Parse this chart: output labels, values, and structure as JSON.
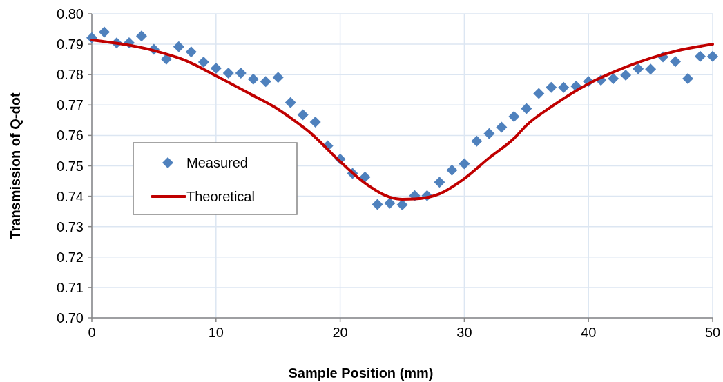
{
  "chart_data": {
    "type": "scatter",
    "xlabel": "Sample Position (mm)",
    "ylabel": "Transmission of Q-dot",
    "xlim": [
      0,
      50
    ],
    "xticks": [
      0,
      10,
      20,
      30,
      40,
      50
    ],
    "ylim": [
      0.7,
      0.8
    ],
    "yticks": [
      {
        "value": 0.7,
        "label": "0.70"
      },
      {
        "value": 0.71,
        "label": "0.71"
      },
      {
        "value": 0.72,
        "label": "0.72"
      },
      {
        "value": 0.73,
        "label": "0.73"
      },
      {
        "value": 0.74,
        "label": "0.74"
      },
      {
        "value": 0.75,
        "label": "0.75"
      },
      {
        "value": 0.76,
        "label": "0.76"
      },
      {
        "value": 0.77,
        "label": "0.77"
      },
      {
        "value": 0.78,
        "label": "0.78"
      },
      {
        "value": 0.79,
        "label": "0.79"
      },
      {
        "value": 0.8,
        "label": "0.80"
      }
    ],
    "grid": true,
    "legend": "left",
    "series": [
      {
        "name": "Measured",
        "marker": "diamond",
        "color": "#4f81bd",
        "x": [
          0,
          1,
          2,
          3,
          4,
          5,
          6,
          7,
          8,
          9,
          10,
          11,
          12,
          13,
          14,
          15,
          16,
          17,
          18,
          19,
          20,
          21,
          22,
          23,
          24,
          25,
          26,
          27,
          28,
          29,
          30,
          31,
          32,
          33,
          34,
          35,
          36,
          37,
          38,
          39,
          40,
          41,
          42,
          43,
          44,
          45,
          46,
          47,
          48,
          49,
          50
        ],
        "values": [
          0.7921,
          0.794,
          0.7904,
          0.7905,
          0.7927,
          0.7883,
          0.7851,
          0.7892,
          0.7875,
          0.7841,
          0.7821,
          0.7805,
          0.7805,
          0.7785,
          0.7777,
          0.7791,
          0.7708,
          0.7668,
          0.7644,
          0.7566,
          0.7522,
          0.7475,
          0.7463,
          0.7373,
          0.7377,
          0.7372,
          0.7402,
          0.7402,
          0.7446,
          0.7486,
          0.7507,
          0.7581,
          0.7606,
          0.7627,
          0.7662,
          0.7688,
          0.7738,
          0.7758,
          0.7758,
          0.7762,
          0.7777,
          0.7782,
          0.7787,
          0.7798,
          0.7819,
          0.7818,
          0.7858,
          0.7843,
          0.7787,
          0.786,
          0.786
        ]
      },
      {
        "name": "Theoretical",
        "type": "line",
        "marker": "none",
        "line_style": "solid",
        "color": "#c00000",
        "x": [
          0,
          5,
          7.5,
          10,
          13,
          15,
          16,
          17.5,
          20,
          22,
          24,
          25,
          26,
          28,
          30,
          32,
          34,
          35,
          37,
          40,
          42,
          45,
          47,
          50
        ],
        "values": [
          0.7914,
          0.7879,
          0.7847,
          0.7796,
          0.7731,
          0.7686,
          0.7658,
          0.7612,
          0.7514,
          0.7443,
          0.7397,
          0.739,
          0.7391,
          0.7408,
          0.7458,
          0.7526,
          0.759,
          0.7633,
          0.7694,
          0.777,
          0.7808,
          0.7854,
          0.7877,
          0.79
        ]
      }
    ]
  }
}
